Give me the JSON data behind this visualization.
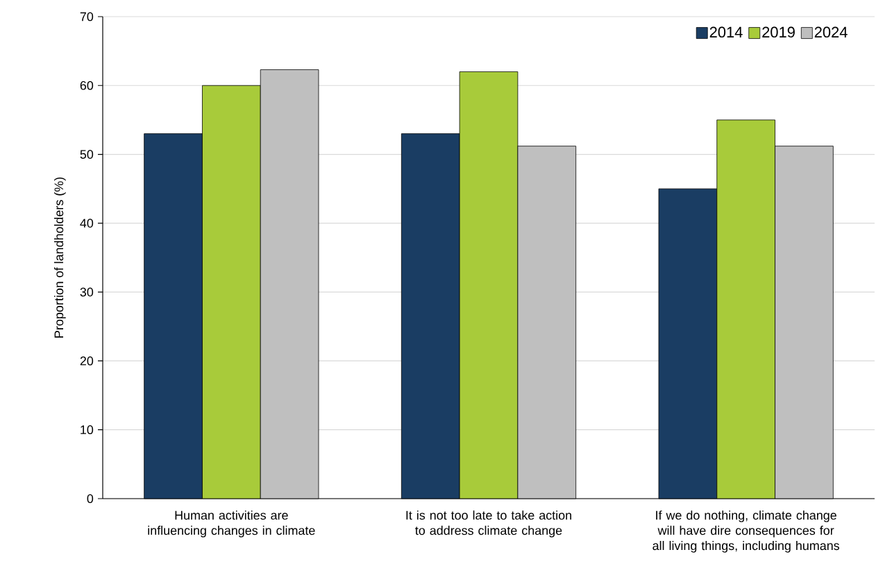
{
  "chart_data": {
    "type": "bar",
    "ylabel": "Proportion of landholders (%)",
    "categories": [
      "Human activities are influencing changes in climate",
      "It is not too late to take action to address climate change",
      "If we do nothing, climate change will have dire consequences for all living things, including humans"
    ],
    "series": [
      {
        "name": "2014",
        "color": "#1a3d63",
        "values": [
          53,
          53,
          45
        ]
      },
      {
        "name": "2019",
        "color": "#a8cb3a",
        "values": [
          60,
          62,
          55
        ]
      },
      {
        "name": "2024",
        "color": "#bfbfbf",
        "values": [
          62.3,
          51.2,
          51.2
        ]
      }
    ],
    "ylim": [
      0,
      70
    ],
    "yticks": [
      0,
      10,
      20,
      30,
      40,
      50,
      60,
      70
    ],
    "grid": "y",
    "legend": "top right"
  }
}
